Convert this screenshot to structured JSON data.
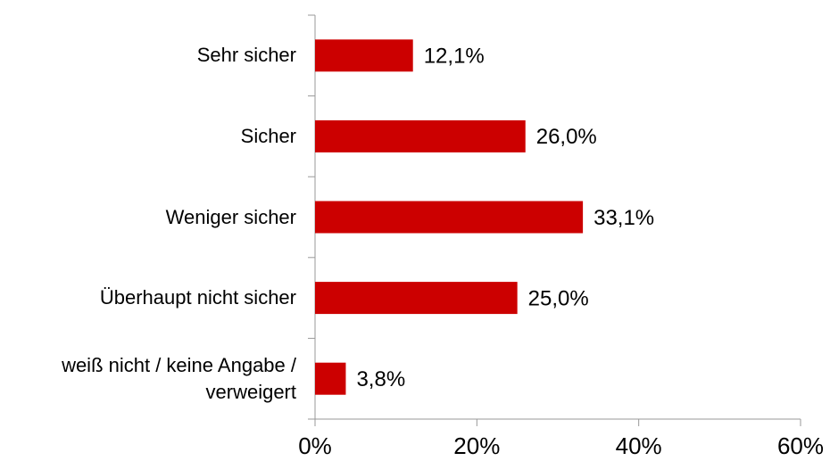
{
  "chart_data": {
    "type": "bar",
    "orientation": "horizontal",
    "categories": [
      "Sehr sicher",
      "Sicher",
      "Weniger sicher",
      "Überhaupt nicht sicher",
      "weiß nicht / keine Angabe /\nverweigert"
    ],
    "values": [
      12.1,
      26.0,
      33.1,
      25.0,
      3.8
    ],
    "value_labels": [
      "12,1%",
      "26,0%",
      "33,1%",
      "25,0%",
      "3,8%"
    ],
    "color": "#cc0000",
    "xlim": [
      0,
      60
    ],
    "xticks": [
      {
        "value": 0,
        "label": "0%"
      },
      {
        "value": 20,
        "label": "20%"
      },
      {
        "value": 40,
        "label": "40%"
      },
      {
        "value": 60,
        "label": "60%"
      }
    ],
    "grid": false
  }
}
